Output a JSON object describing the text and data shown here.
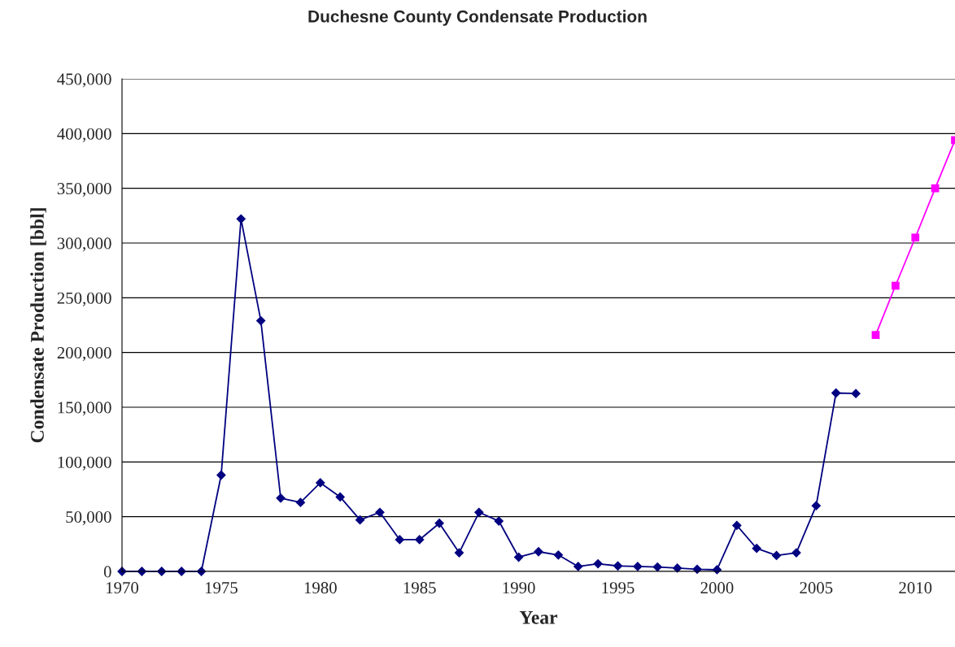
{
  "chart_data": {
    "type": "line",
    "title": "Duchesne County Condensate Production",
    "xlabel": "Year",
    "ylabel": "Condensate Production [bbl]",
    "xlim": [
      1970,
      2012
    ],
    "xticks": [
      1970,
      1975,
      1980,
      1985,
      1990,
      1995,
      2000,
      2005,
      2010
    ],
    "ylim": [
      0,
      450000
    ],
    "yticks": [
      {
        "value": 0,
        "label": "0"
      },
      {
        "value": 50000,
        "label": "50,000"
      },
      {
        "value": 100000,
        "label": "100,000"
      },
      {
        "value": 150000,
        "label": "150,000"
      },
      {
        "value": 200000,
        "label": "200,000"
      },
      {
        "value": 250000,
        "label": "250,000"
      },
      {
        "value": 300000,
        "label": "300,000"
      },
      {
        "value": 350000,
        "label": "350,000"
      },
      {
        "value": 400000,
        "label": "400,000"
      },
      {
        "value": 450000,
        "label": "450,000"
      }
    ],
    "grid": "y",
    "legend": false,
    "series": [
      {
        "color": "#000080",
        "marker": "diamond",
        "x": [
          1970,
          1971,
          1972,
          1973,
          1974,
          1975,
          1976,
          1977,
          1978,
          1979,
          1980,
          1981,
          1982,
          1983,
          1984,
          1985,
          1986,
          1987,
          1988,
          1989,
          1990,
          1991,
          1992,
          1993,
          1994,
          1995,
          1996,
          1997,
          1998,
          1999,
          2000,
          2001,
          2002,
          2003,
          2004,
          2005,
          2006,
          2007
        ],
        "values": [
          0,
          0,
          0,
          0,
          0,
          88000,
          322000,
          229000,
          67000,
          63000,
          81000,
          68000,
          47000,
          54000,
          29000,
          29000,
          44000,
          17000,
          54000,
          46000,
          13000,
          18000,
          15000,
          4500,
          7000,
          5000,
          4500,
          4000,
          3000,
          2000,
          1500,
          42000,
          21000,
          14500,
          17000,
          60000,
          163000,
          162500
        ]
      },
      {
        "color": "#ff00ff",
        "marker": "square",
        "x": [
          2008,
          2009,
          2010,
          2011,
          2012
        ],
        "values": [
          216000,
          261000,
          305000,
          350000,
          394000
        ]
      }
    ]
  }
}
